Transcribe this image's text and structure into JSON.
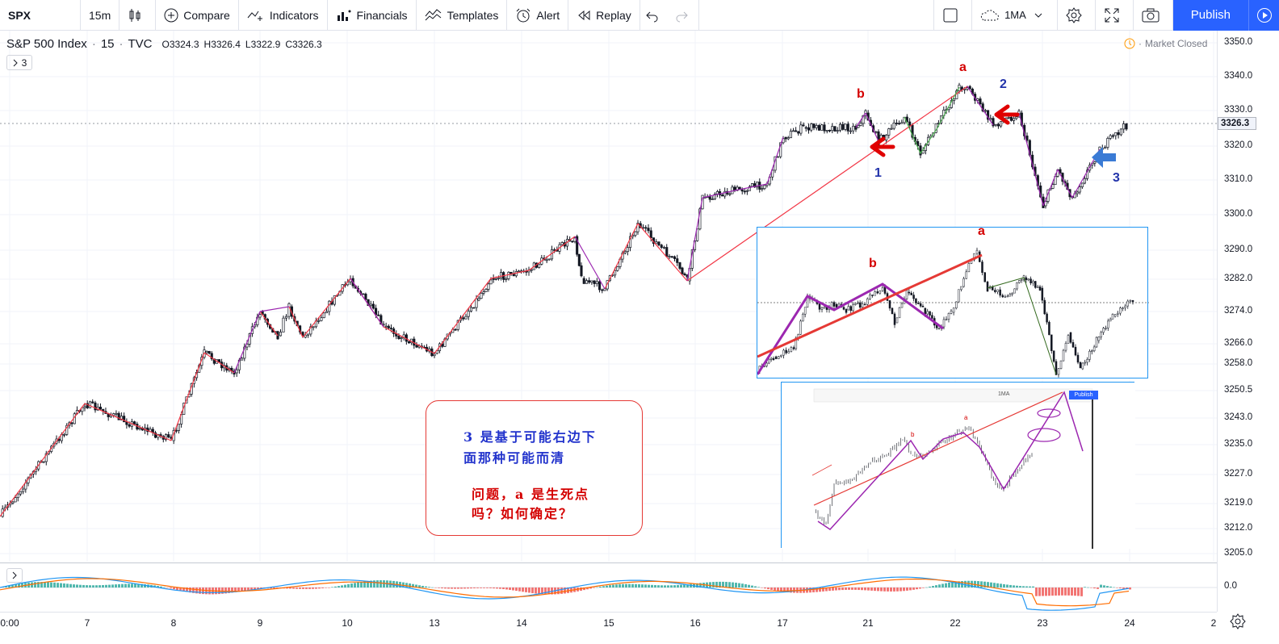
{
  "toolbar": {
    "symbol": "SPX",
    "interval": "15m",
    "compare": "Compare",
    "indicators": "Indicators",
    "financials": "Financials",
    "templates": "Templates",
    "alert": "Alert",
    "replay": "Replay",
    "ma": "1MA",
    "publish": "Publish"
  },
  "legend": {
    "title": "S&P 500 Index",
    "interval": "15",
    "source": "TVC",
    "open": "O3324.3",
    "high": "H3326.4",
    "low": "L3322.9",
    "close": "C3326.3",
    "indicator_count": "3"
  },
  "market_status": "Market Closed",
  "last_price": "3326.3",
  "price_axis": [
    "3350.0",
    "3340.0",
    "3330.0",
    "3320.0",
    "3310.0",
    "3300.0",
    "3290.0",
    "3282.0",
    "3274.0",
    "3266.0",
    "3258.0",
    "3250.5",
    "3243.0",
    "3235.0",
    "3227.0",
    "3219.0",
    "3212.0",
    "3205.0"
  ],
  "osc_axis": "0.0",
  "time_axis": [
    "0:00",
    "7",
    "8",
    "9",
    "10",
    "13",
    "14",
    "15",
    "16",
    "17",
    "21",
    "22",
    "23",
    "24",
    "2"
  ],
  "wave_labels": {
    "b_main": "b",
    "a_main": "a",
    "one": "1",
    "two": "2",
    "three": "3",
    "b_inset": "b",
    "a_inset": "a"
  },
  "inset2": {
    "ma": "1MA",
    "publish": "Publish"
  },
  "note": {
    "line1": "3 是基于可能右边下",
    "line2": "面那种可能而清",
    "line3": "问题，a 是生死点",
    "line4": "吗？如何确定？"
  },
  "colors": {
    "accent": "#2962ff",
    "up": "#131722",
    "zigzag_red": "#f23645",
    "zigzag_purple": "#9c27b0",
    "label_red": "#d40000",
    "label_blue": "#2233aa",
    "arrow_red": "#e00000",
    "arrow_blue": "#3a7bd5"
  }
}
